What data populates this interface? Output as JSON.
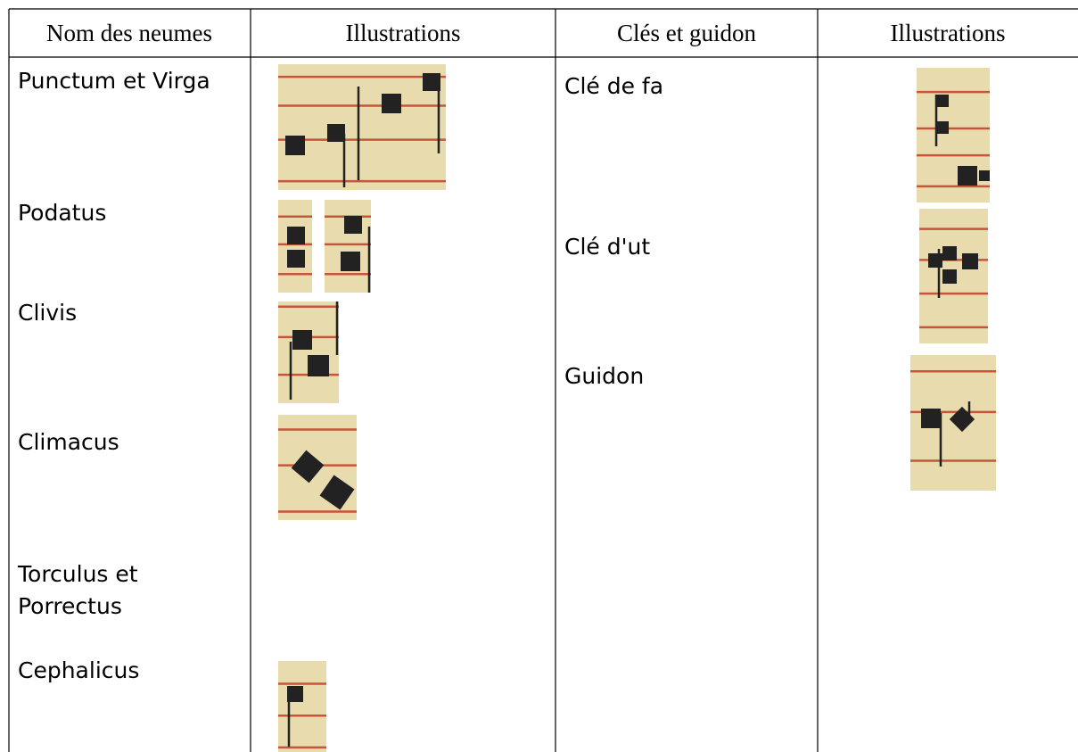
{
  "header": {
    "columns": [
      "Nom des neumes",
      "Illustrations",
      "Clés et guidon",
      "Illustrations"
    ]
  },
  "neumes": [
    {
      "lines": [
        "Punctum et Virga"
      ]
    },
    {
      "lines": [
        "Podatus"
      ]
    },
    {
      "lines": [
        "Clivis"
      ]
    },
    {
      "lines": [
        "Climacus"
      ]
    },
    {
      "lines": [
        "Torculus et",
        "Porrectus"
      ]
    },
    {
      "lines": [
        "Cephalicus"
      ]
    }
  ],
  "cles": [
    {
      "lines": [
        "Clé de fa"
      ]
    },
    {
      "lines": [
        "Clé d'ut"
      ]
    },
    {
      "lines": [
        "Guidon"
      ]
    }
  ]
}
